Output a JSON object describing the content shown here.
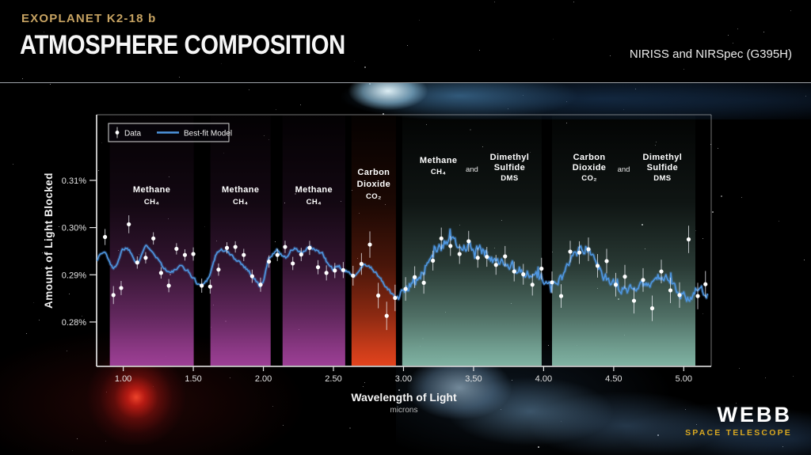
{
  "header": {
    "kicker": "EXOPLANET K2-18 b",
    "title": "ATMOSPHERE COMPOSITION",
    "instrument": "NIRISS and NIRSpec (G395H)"
  },
  "branding": {
    "logo": "WEBB",
    "tagline": "SPACE TELESCOPE"
  },
  "background": {
    "space": "#000000",
    "divider_color": "#b9bec6",
    "planet_glow": "#bfeaf8",
    "red_star": "#e82418"
  },
  "chart_data": {
    "type": "line",
    "title": "",
    "xlabel": "Wavelength of Light",
    "xlabel_sub": "microns",
    "ylabel": "Amount of Light Blocked",
    "xlim": [
      0.81,
      5.196
    ],
    "ylim_pct": [
      0.2706,
      0.3239
    ],
    "grid": false,
    "legend_position": "top-left",
    "xticks": [
      {
        "v": 1.0,
        "label": "1.00"
      },
      {
        "v": 1.5,
        "label": "1.50"
      },
      {
        "v": 2.0,
        "label": "2.00"
      },
      {
        "v": 2.5,
        "label": "2.50"
      },
      {
        "v": 3.0,
        "label": "3.00"
      },
      {
        "v": 3.5,
        "label": "3.50"
      },
      {
        "v": 4.0,
        "label": "4.00"
      },
      {
        "v": 4.5,
        "label": "4.50"
      },
      {
        "v": 5.0,
        "label": "5.00"
      }
    ],
    "yticks": [
      {
        "v": 0.28,
        "label": "0.28%"
      },
      {
        "v": 0.29,
        "label": "0.29%"
      },
      {
        "v": 0.3,
        "label": "0.30%"
      },
      {
        "v": 0.31,
        "label": "0.31%"
      }
    ],
    "legend": [
      {
        "label": "Data",
        "marker": "point-errorbar",
        "color": "#ffffff"
      },
      {
        "label": "Best-fit Model",
        "marker": "line",
        "color": "#4e96e0"
      }
    ],
    "model_color": "#4e96e0",
    "noise": {
      "split": 2.95,
      "niriss": 0.0002,
      "nirspec": 0.00055
    },
    "bands": [
      {
        "x0": 0.904,
        "x1": 1.503,
        "color": "#9c3f95",
        "groups": [
          [
            "Methane",
            "CH₄"
          ]
        ]
      },
      {
        "x0": 1.622,
        "x1": 2.052,
        "color": "#9c3f95",
        "groups": [
          [
            "Methane",
            "CH₄"
          ]
        ]
      },
      {
        "x0": 2.137,
        "x1": 2.584,
        "color": "#9c3f95",
        "groups": [
          [
            "Methane",
            "CH₄"
          ]
        ]
      },
      {
        "x0": 2.629,
        "x1": 2.946,
        "color": "#e2431d",
        "groups": [
          [
            "Carbon",
            "Dioxide",
            "CO₂"
          ]
        ]
      },
      {
        "x0": 2.991,
        "x1": 3.986,
        "color": "#7fb2a2",
        "groups": [
          [
            "Methane",
            "CH₄"
          ],
          [
            "and"
          ],
          [
            "Dimethyl",
            "Sulfide",
            "DMS"
          ]
        ]
      },
      {
        "x0": 4.06,
        "x1": 5.083,
        "color": "#7fb2a2",
        "groups": [
          [
            "Carbon",
            "Dioxide",
            "CO₂"
          ],
          [
            "and"
          ],
          [
            "Dimethyl",
            "Sulfide",
            "DMS"
          ]
        ]
      }
    ],
    "series": [
      {
        "name": "Best-fit Model",
        "type": "line",
        "points": [
          [
            0.81,
            0.2932
          ],
          [
            0.84,
            0.2945
          ],
          [
            0.87,
            0.2948
          ],
          [
            0.9,
            0.293
          ],
          [
            0.93,
            0.291
          ],
          [
            0.96,
            0.2928
          ],
          [
            0.99,
            0.2952
          ],
          [
            1.02,
            0.2958
          ],
          [
            1.05,
            0.295
          ],
          [
            1.08,
            0.2932
          ],
          [
            1.11,
            0.2928
          ],
          [
            1.14,
            0.295
          ],
          [
            1.17,
            0.2962
          ],
          [
            1.2,
            0.2955
          ],
          [
            1.23,
            0.2942
          ],
          [
            1.26,
            0.2928
          ],
          [
            1.3,
            0.2912
          ],
          [
            1.34,
            0.2903
          ],
          [
            1.38,
            0.2912
          ],
          [
            1.42,
            0.2918
          ],
          [
            1.46,
            0.2908
          ],
          [
            1.5,
            0.2893
          ],
          [
            1.53,
            0.2882
          ],
          [
            1.56,
            0.2876
          ],
          [
            1.6,
            0.289
          ],
          [
            1.63,
            0.2912
          ],
          [
            1.66,
            0.2942
          ],
          [
            1.69,
            0.2953
          ],
          [
            1.72,
            0.2952
          ],
          [
            1.75,
            0.2946
          ],
          [
            1.78,
            0.2938
          ],
          [
            1.82,
            0.293
          ],
          [
            1.86,
            0.292
          ],
          [
            1.9,
            0.2906
          ],
          [
            1.94,
            0.289
          ],
          [
            1.97,
            0.2876
          ],
          [
            2.0,
            0.2882
          ],
          [
            2.03,
            0.2928
          ],
          [
            2.07,
            0.2948
          ],
          [
            2.1,
            0.2952
          ],
          [
            2.13,
            0.2942
          ],
          [
            2.16,
            0.2938
          ],
          [
            2.19,
            0.2948
          ],
          [
            2.22,
            0.2956
          ],
          [
            2.25,
            0.295
          ],
          [
            2.28,
            0.2946
          ],
          [
            2.31,
            0.2954
          ],
          [
            2.34,
            0.2957
          ],
          [
            2.38,
            0.295
          ],
          [
            2.42,
            0.2945
          ],
          [
            2.46,
            0.2922
          ],
          [
            2.5,
            0.2912
          ],
          [
            2.54,
            0.2916
          ],
          [
            2.58,
            0.2908
          ],
          [
            2.62,
            0.2902
          ],
          [
            2.66,
            0.29
          ],
          [
            2.7,
            0.2918
          ],
          [
            2.73,
            0.2922
          ],
          [
            2.76,
            0.2915
          ],
          [
            2.8,
            0.2905
          ],
          [
            2.84,
            0.289
          ],
          [
            2.88,
            0.2872
          ],
          [
            2.92,
            0.2858
          ],
          [
            2.96,
            0.2852
          ],
          [
            3.0,
            0.2866
          ],
          [
            3.04,
            0.2876
          ],
          [
            3.08,
            0.2888
          ],
          [
            3.12,
            0.2898
          ],
          [
            3.16,
            0.292
          ],
          [
            3.19,
            0.2942
          ],
          [
            3.22,
            0.295
          ],
          [
            3.26,
            0.2958
          ],
          [
            3.3,
            0.2965
          ],
          [
            3.34,
            0.2968
          ],
          [
            3.38,
            0.2964
          ],
          [
            3.42,
            0.2963
          ],
          [
            3.46,
            0.296
          ],
          [
            3.5,
            0.2958
          ],
          [
            3.54,
            0.2952
          ],
          [
            3.58,
            0.2945
          ],
          [
            3.62,
            0.2935
          ],
          [
            3.66,
            0.2928
          ],
          [
            3.7,
            0.2928
          ],
          [
            3.74,
            0.2926
          ],
          [
            3.78,
            0.292
          ],
          [
            3.82,
            0.2912
          ],
          [
            3.86,
            0.2906
          ],
          [
            3.9,
            0.2903
          ],
          [
            3.94,
            0.2898
          ],
          [
            3.98,
            0.2895
          ],
          [
            4.02,
            0.289
          ],
          [
            4.06,
            0.2886
          ],
          [
            4.1,
            0.2884
          ],
          [
            4.14,
            0.2894
          ],
          [
            4.18,
            0.292
          ],
          [
            4.22,
            0.2944
          ],
          [
            4.26,
            0.2954
          ],
          [
            4.3,
            0.2956
          ],
          [
            4.34,
            0.2946
          ],
          [
            4.38,
            0.292
          ],
          [
            4.42,
            0.29
          ],
          [
            4.46,
            0.2886
          ],
          [
            4.5,
            0.2878
          ],
          [
            4.54,
            0.2874
          ],
          [
            4.58,
            0.287
          ],
          [
            4.62,
            0.2868
          ],
          [
            4.66,
            0.287
          ],
          [
            4.7,
            0.2874
          ],
          [
            4.74,
            0.288
          ],
          [
            4.78,
            0.2888
          ],
          [
            4.82,
            0.2894
          ],
          [
            4.86,
            0.2892
          ],
          [
            4.9,
            0.2886
          ],
          [
            4.94,
            0.2874
          ],
          [
            4.98,
            0.2862
          ],
          [
            5.02,
            0.2855
          ],
          [
            5.06,
            0.2852
          ],
          [
            5.1,
            0.2858
          ],
          [
            5.14,
            0.2865
          ],
          [
            5.17,
            0.2862
          ]
        ]
      },
      {
        "name": "Data",
        "type": "scatter-errorbar",
        "points": [
          [
            0.87,
            0.298,
            0.0017
          ],
          [
            0.93,
            0.2857,
            0.0019
          ],
          [
            0.985,
            0.2872,
            0.0015
          ],
          [
            1.04,
            0.3007,
            0.0019
          ],
          [
            1.1,
            0.2926,
            0.0013
          ],
          [
            1.16,
            0.2936,
            0.0012
          ],
          [
            1.215,
            0.2977,
            0.0013
          ],
          [
            1.27,
            0.2904,
            0.0012
          ],
          [
            1.325,
            0.2877,
            0.0014
          ],
          [
            1.38,
            0.2955,
            0.0012
          ],
          [
            1.44,
            0.2942,
            0.0012
          ],
          [
            1.5,
            0.2944,
            0.0014
          ],
          [
            1.56,
            0.2877,
            0.0015
          ],
          [
            1.62,
            0.2875,
            0.0015
          ],
          [
            1.68,
            0.2911,
            0.0013
          ],
          [
            1.74,
            0.2957,
            0.0012
          ],
          [
            1.8,
            0.2959,
            0.0012
          ],
          [
            1.86,
            0.2942,
            0.0013
          ],
          [
            1.92,
            0.2897,
            0.0014
          ],
          [
            1.98,
            0.2879,
            0.0015
          ],
          [
            2.04,
            0.2928,
            0.0013
          ],
          [
            2.1,
            0.2942,
            0.0013
          ],
          [
            2.155,
            0.2959,
            0.0013
          ],
          [
            2.21,
            0.2924,
            0.0014
          ],
          [
            2.27,
            0.2943,
            0.0014
          ],
          [
            2.33,
            0.2957,
            0.0015
          ],
          [
            2.39,
            0.2916,
            0.0015
          ],
          [
            2.45,
            0.2904,
            0.0016
          ],
          [
            2.51,
            0.2909,
            0.0016
          ],
          [
            2.57,
            0.291,
            0.0017
          ],
          [
            2.64,
            0.2898,
            0.0021
          ],
          [
            2.7,
            0.2923,
            0.0023
          ],
          [
            2.76,
            0.2964,
            0.0028
          ],
          [
            2.82,
            0.2856,
            0.0027
          ],
          [
            2.88,
            0.2813,
            0.003
          ],
          [
            2.94,
            0.2851,
            0.0028
          ],
          [
            3.015,
            0.287,
            0.0025
          ],
          [
            3.08,
            0.2895,
            0.0023
          ],
          [
            3.145,
            0.2883,
            0.0023
          ],
          [
            3.21,
            0.293,
            0.0021
          ],
          [
            3.27,
            0.2977,
            0.0023
          ],
          [
            3.335,
            0.2961,
            0.0021
          ],
          [
            3.4,
            0.2944,
            0.0021
          ],
          [
            3.465,
            0.2971,
            0.0022
          ],
          [
            3.53,
            0.2936,
            0.0021
          ],
          [
            3.595,
            0.2938,
            0.0021
          ],
          [
            3.66,
            0.2921,
            0.0021
          ],
          [
            3.725,
            0.2939,
            0.0022
          ],
          [
            3.79,
            0.2907,
            0.0021
          ],
          [
            3.855,
            0.2901,
            0.0022
          ],
          [
            3.92,
            0.2879,
            0.0023
          ],
          [
            3.985,
            0.2913,
            0.0023
          ],
          [
            4.06,
            0.2884,
            0.0023
          ],
          [
            4.125,
            0.2855,
            0.0025
          ],
          [
            4.19,
            0.2949,
            0.0023
          ],
          [
            4.255,
            0.2947,
            0.0024
          ],
          [
            4.32,
            0.2954,
            0.0025
          ],
          [
            4.385,
            0.2919,
            0.0025
          ],
          [
            4.45,
            0.2929,
            0.0026
          ],
          [
            4.515,
            0.2879,
            0.0025
          ],
          [
            4.58,
            0.2896,
            0.0025
          ],
          [
            4.645,
            0.2845,
            0.0027
          ],
          [
            4.71,
            0.2889,
            0.0025
          ],
          [
            4.775,
            0.2829,
            0.0027
          ],
          [
            4.84,
            0.2907,
            0.0025
          ],
          [
            4.905,
            0.2867,
            0.0027
          ],
          [
            4.97,
            0.2857,
            0.0027
          ],
          [
            5.035,
            0.2975,
            0.0029
          ],
          [
            5.1,
            0.2855,
            0.0028
          ],
          [
            5.155,
            0.288,
            0.0028
          ]
        ]
      }
    ]
  }
}
